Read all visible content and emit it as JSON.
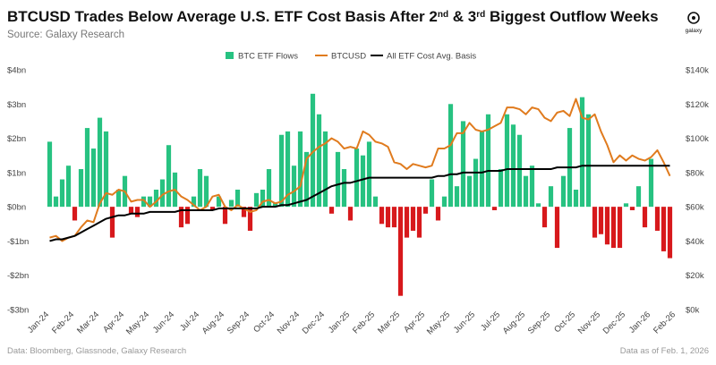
{
  "chart_data": {
    "type": "bar_line",
    "title_parts": [
      "BTCUSD Trades Below Average U.S. ETF Cost Basis After 2",
      "nd",
      " & 3",
      "rd",
      " Biggest Outflow Weeks"
    ],
    "subtitle": "Source: Galaxy Research",
    "logo": "galaxy",
    "source": "Data: Bloomberg, Glassnode, Galaxy Research",
    "note": "Data as of Feb. 1, 2026",
    "xlim": [
      -0.5,
      25.5
    ],
    "xticks": [
      {
        "value": 0,
        "label": "Jan-24"
      },
      {
        "value": 1,
        "label": "Feb-24"
      },
      {
        "value": 2,
        "label": "Mar-24"
      },
      {
        "value": 3,
        "label": "Apr-24"
      },
      {
        "value": 4,
        "label": "May-24"
      },
      {
        "value": 5,
        "label": "Jun-24"
      },
      {
        "value": 6,
        "label": "Jul-24"
      },
      {
        "value": 7,
        "label": "Aug-24"
      },
      {
        "value": 8,
        "label": "Sep-24"
      },
      {
        "value": 9,
        "label": "Oct-24"
      },
      {
        "value": 10,
        "label": "Nov-24"
      },
      {
        "value": 11,
        "label": "Dec-24"
      },
      {
        "value": 12,
        "label": "Jan-25"
      },
      {
        "value": 13,
        "label": "Feb-25"
      },
      {
        "value": 14,
        "label": "Mar-25"
      },
      {
        "value": 15,
        "label": "Apr-25"
      },
      {
        "value": 16,
        "label": "May-25"
      },
      {
        "value": 17,
        "label": "Jun-25"
      },
      {
        "value": 18,
        "label": "Jul-25"
      },
      {
        "value": 19,
        "label": "Aug-25"
      },
      {
        "value": 20,
        "label": "Sep-25"
      },
      {
        "value": 21,
        "label": "Oct-25"
      },
      {
        "value": 22,
        "label": "Nov-25"
      },
      {
        "value": 23,
        "label": "Dec-25"
      },
      {
        "value": 24,
        "label": "Jan-26"
      },
      {
        "value": 25,
        "label": "Feb-26"
      }
    ],
    "ylim": [
      -3,
      4
    ],
    "yticks": [
      {
        "value": 4,
        "label": "$4bn"
      },
      {
        "value": 3,
        "label": "$3bn"
      },
      {
        "value": 2,
        "label": "$2bn"
      },
      {
        "value": 1,
        "label": "$1bn"
      },
      {
        "value": 0,
        "label": "$0bn"
      },
      {
        "value": -1,
        "label": "-$1bn"
      },
      {
        "value": -2,
        "label": "-$2bn"
      },
      {
        "value": -3,
        "label": "-$3bn"
      }
    ],
    "y2lim": [
      0,
      140
    ],
    "y2ticks": [
      {
        "value": 140,
        "label": "$140k"
      },
      {
        "value": 120,
        "label": "$120k"
      },
      {
        "value": 100,
        "label": "$100k"
      },
      {
        "value": 80,
        "label": "$80k"
      },
      {
        "value": 60,
        "label": "$60k"
      },
      {
        "value": 40,
        "label": "$40k"
      },
      {
        "value": 20,
        "label": "$20k"
      },
      {
        "value": 0,
        "label": "$0k"
      }
    ],
    "x": [
      0.125,
      0.375,
      0.625,
      0.875,
      1.125,
      1.375,
      1.625,
      1.875,
      2.125,
      2.375,
      2.625,
      2.875,
      3.125,
      3.375,
      3.625,
      3.875,
      4.125,
      4.375,
      4.625,
      4.875,
      5.125,
      5.375,
      5.625,
      5.875,
      6.125,
      6.375,
      6.625,
      6.875,
      7.125,
      7.375,
      7.625,
      7.875,
      8.125,
      8.375,
      8.625,
      8.875,
      9.125,
      9.375,
      9.625,
      9.875,
      10.125,
      10.375,
      10.625,
      10.875,
      11.125,
      11.375,
      11.625,
      11.875,
      12.125,
      12.375,
      12.625,
      12.875,
      13.125,
      13.375,
      13.625,
      13.875,
      14.125,
      14.375,
      14.625,
      14.875,
      15.125,
      15.375,
      15.625,
      15.875,
      16.125,
      16.375,
      16.625,
      16.875,
      17.125,
      17.375,
      17.625,
      17.875,
      18.125,
      18.375,
      18.625,
      18.875,
      19.125,
      19.375,
      19.625,
      19.875,
      20.125,
      20.375,
      20.625,
      20.875,
      21.125,
      21.375,
      21.625,
      21.875,
      22.125,
      22.375,
      22.625,
      22.875,
      23.125,
      23.375,
      23.625,
      23.875,
      24.125,
      24.375,
      24.625,
      24.875
    ],
    "series": [
      {
        "name": "BTC ETF Flows",
        "kind": "bar",
        "color": "#27c281",
        "negative_color": "#d7191c",
        "values": [
          1.9,
          0.3,
          0.8,
          1.2,
          -0.4,
          1.1,
          2.3,
          1.7,
          2.6,
          2.2,
          -0.9,
          0.5,
          0.9,
          -0.2,
          -0.3,
          0.3,
          0.3,
          0.5,
          0.8,
          1.8,
          1.0,
          -0.6,
          -0.5,
          0.3,
          1.1,
          0.9,
          -0.1,
          0.3,
          -0.5,
          0.2,
          0.5,
          -0.3,
          -0.7,
          0.4,
          0.5,
          1.1,
          0.1,
          2.1,
          2.2,
          1.2,
          2.2,
          1.6,
          3.3,
          2.7,
          2.2,
          -0.2,
          1.6,
          1.1,
          -0.4,
          1.7,
          1.5,
          1.9,
          0.3,
          -0.5,
          -0.6,
          -0.6,
          -2.6,
          -0.9,
          -0.7,
          -0.9,
          -0.2,
          0.8,
          -0.4,
          0.3,
          3.0,
          0.6,
          2.5,
          0.9,
          1.4,
          2.2,
          2.7,
          -0.1,
          1.1,
          2.7,
          2.4,
          2.1,
          0.9,
          1.2,
          0.1,
          -0.6,
          0.6,
          -1.2,
          0.9,
          2.3,
          0.5,
          3.2,
          2.7,
          -0.9,
          -0.8,
          -1.1,
          -1.2,
          -1.2,
          0.1,
          -0.1,
          0.6,
          -0.6,
          1.4,
          -0.7,
          -1.3,
          -1.5
        ]
      },
      {
        "name": "BTCUSD",
        "kind": "line",
        "axis": "y2",
        "color": "#e07b1e",
        "values": [
          42,
          43,
          40,
          42,
          43,
          48,
          52,
          51,
          62,
          68,
          67,
          70,
          69,
          63,
          64,
          64,
          60,
          63,
          67,
          69,
          70,
          66,
          64,
          61,
          58,
          60,
          66,
          67,
          60,
          58,
          61,
          59,
          57,
          58,
          63,
          64,
          62,
          63,
          67,
          69,
          72,
          88,
          92,
          95,
          97,
          100,
          98,
          94,
          95,
          94,
          104,
          102,
          98,
          97,
          95,
          86,
          85,
          82,
          85,
          84,
          83,
          84,
          94,
          94,
          96,
          103,
          103,
          109,
          105,
          104,
          105,
          107,
          109,
          118,
          118,
          117,
          114,
          118,
          117,
          112,
          110,
          115,
          116,
          113,
          123,
          112,
          111,
          114,
          104,
          96,
          86,
          90,
          87,
          90,
          88,
          87,
          89,
          93,
          86,
          78
        ]
      },
      {
        "name": "All ETF Cost Avg. Basis",
        "kind": "line",
        "axis": "y2",
        "color": "#000000",
        "values": [
          40,
          41,
          41,
          42,
          43,
          45,
          47,
          49,
          51,
          53,
          54,
          55,
          55,
          56,
          56,
          56,
          57,
          57,
          57,
          57,
          57,
          58,
          58,
          58,
          58,
          58,
          58,
          59,
          59,
          59,
          59,
          59,
          59,
          59,
          60,
          60,
          60,
          61,
          61,
          62,
          63,
          64,
          66,
          68,
          70,
          72,
          73,
          74,
          74,
          75,
          76,
          77,
          77,
          77,
          77,
          77,
          77,
          77,
          77,
          77,
          77,
          77,
          78,
          78,
          79,
          79,
          80,
          80,
          80,
          80,
          81,
          81,
          81,
          82,
          82,
          82,
          82,
          82,
          82,
          82,
          82,
          83,
          83,
          83,
          83,
          84,
          84,
          84,
          84,
          84,
          84,
          84,
          84,
          84,
          84,
          84,
          84,
          84,
          84,
          84
        ]
      }
    ]
  }
}
